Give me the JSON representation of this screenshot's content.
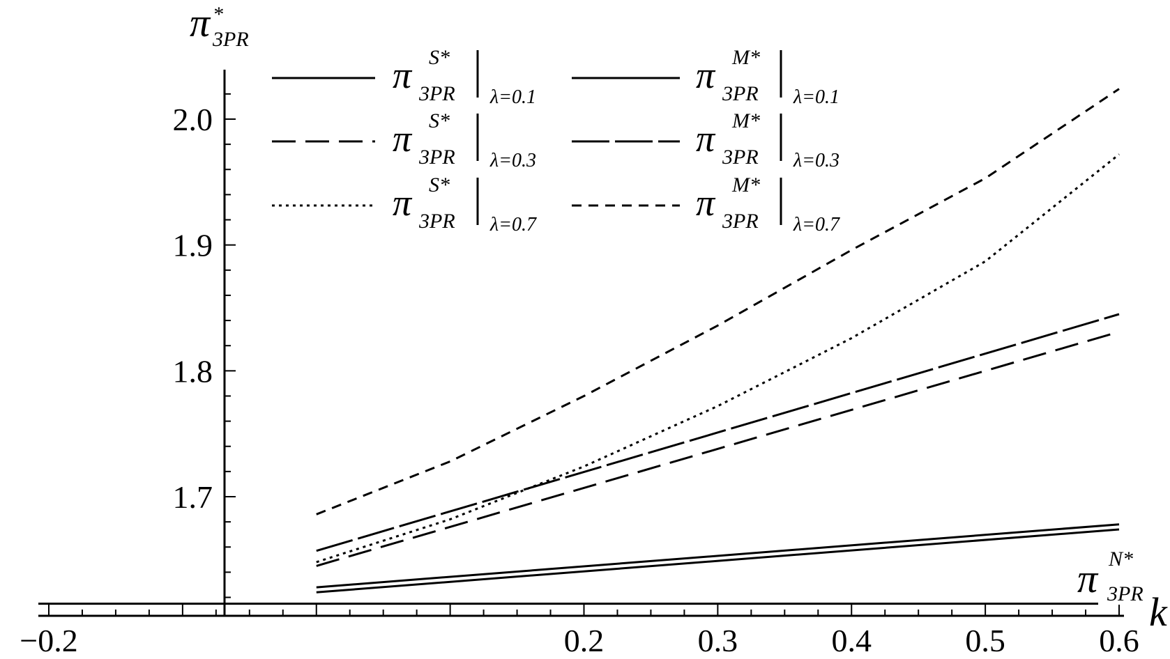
{
  "chart_data": {
    "type": "line",
    "xlabel": "k",
    "ylabel": {
      "main": "π",
      "sup": "*",
      "sub": "3PR"
    },
    "xlim": [
      -0.2,
      0.6
    ],
    "ylim": [
      1.6,
      2.04
    ],
    "x_ticks": [
      {
        "value": -0.2,
        "label": "−0.2"
      },
      {
        "value": 0.2,
        "label": "0.2"
      },
      {
        "value": 0.3,
        "label": "0.3"
      },
      {
        "value": 0.4,
        "label": "0.4"
      },
      {
        "value": 0.5,
        "label": "0.5"
      },
      {
        "value": 0.6,
        "label": "0.6"
      }
    ],
    "y_ticks": [
      {
        "value": 1.7,
        "label": "1.7"
      },
      {
        "value": 1.8,
        "label": "1.8"
      },
      {
        "value": 1.9,
        "label": "1.9"
      },
      {
        "value": 2.0,
        "label": "2.0"
      }
    ],
    "grid": false,
    "legend_placement": "top",
    "series": [
      {
        "key": "S01",
        "dash": "solid",
        "legend": {
          "main": "π",
          "sup": "S*",
          "sub": "3PR",
          "cond": "λ=0.1"
        },
        "x": [
          0,
          0.6
        ],
        "y": [
          1.624,
          1.674
        ]
      },
      {
        "key": "M01",
        "dash": "solid",
        "legend": {
          "main": "π",
          "sup": "M*",
          "sub": "3PR",
          "cond": "λ=0.1"
        },
        "x": [
          0,
          0.6
        ],
        "y": [
          1.628,
          1.678
        ]
      },
      {
        "key": "S03",
        "dash": "longdash",
        "legend": {
          "main": "π",
          "sup": "S*",
          "sub": "3PR",
          "cond": "λ=0.3"
        },
        "x": [
          0,
          0.6
        ],
        "y": [
          1.645,
          1.831
        ]
      },
      {
        "key": "M03",
        "dash": "longsolid",
        "legend": {
          "main": "π",
          "sup": "M*",
          "sub": "3PR",
          "cond": "λ=0.3"
        },
        "x": [
          0,
          0.6
        ],
        "y": [
          1.657,
          1.845
        ]
      },
      {
        "key": "S07",
        "dash": "dotted",
        "legend": {
          "main": "π",
          "sup": "S*",
          "sub": "3PR",
          "cond": "λ=0.7"
        },
        "x": [
          0,
          0.1,
          0.2,
          0.3,
          0.4,
          0.5,
          0.6
        ],
        "y": [
          1.648,
          1.682,
          1.724,
          1.772,
          1.826,
          1.887,
          1.972
        ]
      },
      {
        "key": "M07",
        "dash": "dashed",
        "legend": {
          "main": "π",
          "sup": "M*",
          "sub": "3PR",
          "cond": "λ=0.7"
        },
        "x": [
          0,
          0.1,
          0.2,
          0.3,
          0.4,
          0.5,
          0.6
        ],
        "y": [
          1.686,
          1.728,
          1.78,
          1.836,
          1.896,
          1.953,
          2.024
        ]
      }
    ],
    "reference_line": {
      "label": {
        "main": "π",
        "sup": "N*",
        "sub": "3PR"
      },
      "y": 1.615
    }
  }
}
